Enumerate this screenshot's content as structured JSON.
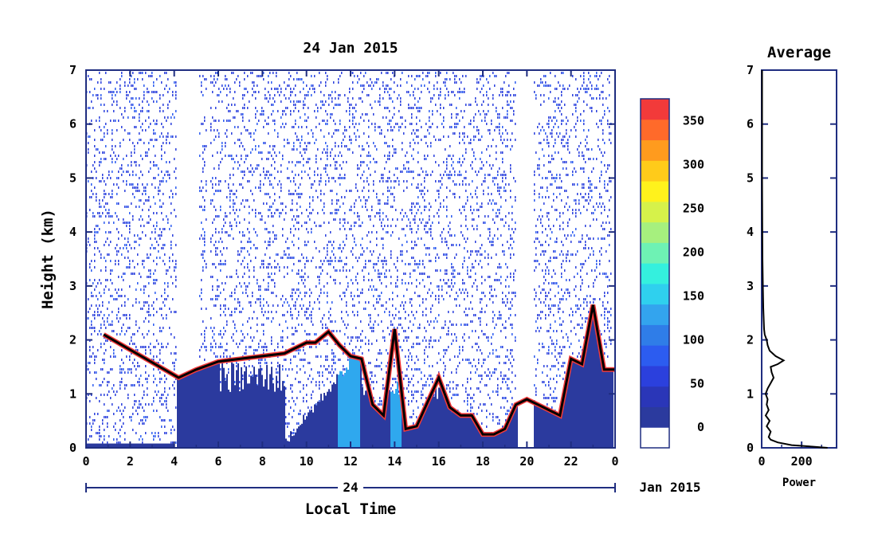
{
  "chart_data": [
    {
      "type": "heatmap",
      "title": "24 Jan 2015",
      "xlabel": "Local Time",
      "ylabel": "Height (km)",
      "date_label": "24",
      "date_suffix": "Jan 2015",
      "xlim": [
        0,
        24
      ],
      "ylim": [
        0,
        7
      ],
      "x_tick_labels": [
        "0",
        "2",
        "4",
        "6",
        "8",
        "10",
        "12",
        "14",
        "16",
        "18",
        "20",
        "22",
        "0"
      ],
      "y_tick_labels": [
        "0",
        "1",
        "2",
        "3",
        "4",
        "5",
        "6",
        "7"
      ],
      "colorbar": {
        "range": [
          0,
          375
        ],
        "tick_labels": [
          "0",
          "50",
          "100",
          "150",
          "200",
          "250",
          "300",
          "350"
        ],
        "colors": [
          "#ffffff",
          "#2b3a9e",
          "#2a36b8",
          "#2b40dd",
          "#2c5cf0",
          "#2f7de8",
          "#33a4ee",
          "#2fd0ee",
          "#34f0de",
          "#6ef2b4",
          "#a6f07e",
          "#d6f24a",
          "#fff21c",
          "#ffcb1a",
          "#ff9b1e",
          "#ff6a2a",
          "#f23a3a"
        ]
      },
      "cloud_base_top_km": [
        [
          0.8,
          2.1
        ],
        [
          4.2,
          1.3
        ],
        [
          5.0,
          1.45
        ],
        [
          6.0,
          1.6
        ],
        [
          7.0,
          1.65
        ],
        [
          8.0,
          1.7
        ],
        [
          9.0,
          1.75
        ],
        [
          10.0,
          1.95
        ],
        [
          10.4,
          1.95
        ],
        [
          11.0,
          2.15
        ],
        [
          11.5,
          1.9
        ],
        [
          12.0,
          1.7
        ],
        [
          12.5,
          1.65
        ],
        [
          13.0,
          0.8
        ],
        [
          13.5,
          0.6
        ],
        [
          14.0,
          2.2
        ],
        [
          14.5,
          0.35
        ],
        [
          15.0,
          0.4
        ],
        [
          15.5,
          0.85
        ],
        [
          16.0,
          1.3
        ],
        [
          16.5,
          0.75
        ],
        [
          17.0,
          0.6
        ],
        [
          17.5,
          0.6
        ],
        [
          18.0,
          0.25
        ],
        [
          18.5,
          0.25
        ],
        [
          19.0,
          0.35
        ],
        [
          19.5,
          0.8
        ],
        [
          20.0,
          0.9
        ],
        [
          20.5,
          0.8
        ],
        [
          21.0,
          0.7
        ],
        [
          21.5,
          0.6
        ],
        [
          22.0,
          1.65
        ],
        [
          22.5,
          1.55
        ],
        [
          23.0,
          2.65
        ],
        [
          23.5,
          1.45
        ],
        [
          24.0,
          1.45
        ]
      ]
    },
    {
      "type": "line",
      "title": "Average",
      "xlabel": "Power",
      "ylabel": "",
      "xlim": [
        0,
        375
      ],
      "ylim": [
        0,
        7
      ],
      "x_tick_labels": [
        "0",
        "200"
      ],
      "y_tick_labels": [
        "0",
        "1",
        "2",
        "3",
        "4",
        "5",
        "6",
        "7"
      ],
      "series": [
        {
          "points": [
            [
              330,
              0.0
            ],
            [
              260,
              0.02
            ],
            [
              150,
              0.05
            ],
            [
              80,
              0.1
            ],
            [
              45,
              0.15
            ],
            [
              35,
              0.2
            ],
            [
              45,
              0.3
            ],
            [
              25,
              0.4
            ],
            [
              40,
              0.5
            ],
            [
              20,
              0.6
            ],
            [
              35,
              0.7
            ],
            [
              25,
              0.8
            ],
            [
              30,
              0.9
            ],
            [
              20,
              1.0
            ],
            [
              30,
              1.1
            ],
            [
              45,
              1.2
            ],
            [
              60,
              1.3
            ],
            [
              50,
              1.4
            ],
            [
              45,
              1.5
            ],
            [
              80,
              1.55
            ],
            [
              110,
              1.62
            ],
            [
              70,
              1.7
            ],
            [
              40,
              1.8
            ],
            [
              30,
              1.9
            ],
            [
              25,
              2.0
            ],
            [
              15,
              2.1
            ],
            [
              12,
              2.2
            ],
            [
              10,
              2.4
            ],
            [
              8,
              2.6
            ],
            [
              6,
              3.0
            ],
            [
              4,
              3.5
            ],
            [
              3,
              4.0
            ],
            [
              2,
              5.0
            ],
            [
              2,
              6.0
            ],
            [
              2,
              7.0
            ]
          ]
        }
      ]
    }
  ]
}
